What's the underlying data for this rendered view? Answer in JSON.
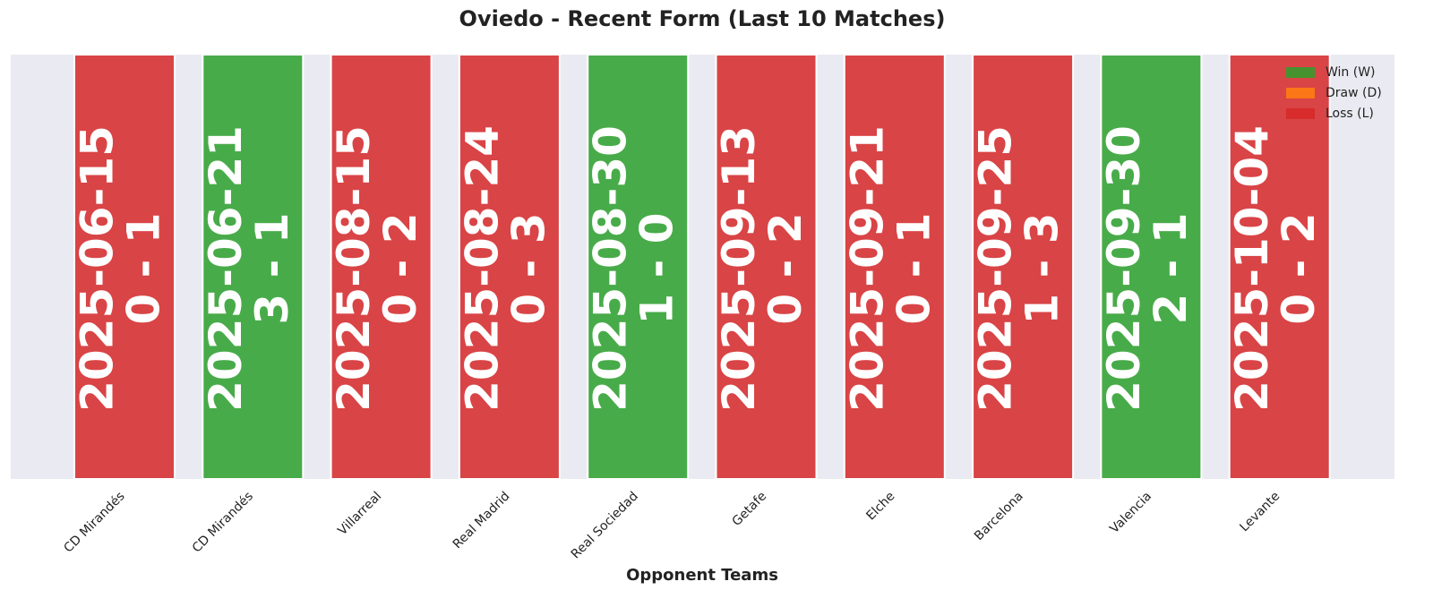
{
  "chart_data": {
    "type": "bar",
    "title": "Oviedo - Recent Form (Last 10 Matches)",
    "x_label": "Opponent Teams",
    "categories": [
      "CD Mirandés",
      "CD Mirandés",
      "Villarreal",
      "Real Madrid",
      "Real Sociedad",
      "Getafe",
      "Elche",
      "Barcelona",
      "Valencia",
      "Levante"
    ],
    "dates": [
      "2025-06-15",
      "2025-06-21",
      "2025-08-15",
      "2025-08-24",
      "2025-08-30",
      "2025-09-13",
      "2025-09-21",
      "2025-09-25",
      "2025-09-30",
      "2025-10-04"
    ],
    "scores": [
      "0 - 1",
      "3 - 1",
      "0 - 2",
      "0 - 3",
      "1 - 0",
      "0 - 2",
      "0 - 1",
      "1 - 3",
      "2 - 1",
      "0 - 2"
    ],
    "results": [
      "L",
      "W",
      "L",
      "L",
      "W",
      "L",
      "L",
      "L",
      "W",
      "L"
    ],
    "legend": [
      {
        "key": "W",
        "label": "Win (W)",
        "color": "#2ca02c"
      },
      {
        "key": "D",
        "label": "Draw (D)",
        "color": "#ff7f0e"
      },
      {
        "key": "L",
        "label": "Loss (L)",
        "color": "#d62728"
      }
    ]
  }
}
